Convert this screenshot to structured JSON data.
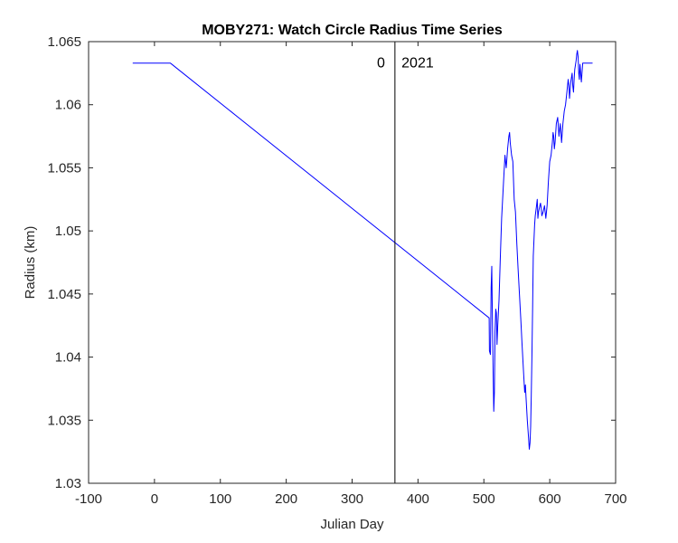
{
  "chart_data": {
    "type": "line",
    "title": "MOBY271: Watch Circle Radius Time Series",
    "xlabel": "Julian Day",
    "ylabel": "Radius (km)",
    "xlim": [
      -100,
      700
    ],
    "ylim": [
      1.03,
      1.065
    ],
    "xticks": [
      -100,
      0,
      100,
      200,
      300,
      400,
      500,
      600,
      700
    ],
    "yticks": [
      1.03,
      1.035,
      1.04,
      1.045,
      1.05,
      1.055,
      1.06,
      1.065
    ],
    "grid": false,
    "box": true,
    "series": [
      {
        "color": "#0000ff",
        "points": [
          [
            -33,
            1.0633
          ],
          [
            24,
            1.0633
          ],
          [
            508,
            1.0431
          ],
          [
            508.5,
            1.0405
          ],
          [
            510,
            1.0402
          ],
          [
            511,
            1.0455
          ],
          [
            512,
            1.0472
          ],
          [
            513,
            1.043
          ],
          [
            514,
            1.0388
          ],
          [
            515,
            1.0357
          ],
          [
            516,
            1.0372
          ],
          [
            517,
            1.042
          ],
          [
            518,
            1.0438
          ],
          [
            519,
            1.0435
          ],
          [
            520,
            1.041
          ],
          [
            521,
            1.0425
          ],
          [
            523,
            1.0445
          ],
          [
            525,
            1.048
          ],
          [
            527,
            1.051
          ],
          [
            530,
            1.054
          ],
          [
            532,
            1.056
          ],
          [
            534,
            1.055
          ],
          [
            536,
            1.0565
          ],
          [
            538,
            1.0575
          ],
          [
            539,
            1.0578
          ],
          [
            540,
            1.057
          ],
          [
            542,
            1.056
          ],
          [
            544,
            1.0555
          ],
          [
            546,
            1.0525
          ],
          [
            548,
            1.0515
          ],
          [
            550,
            1.049
          ],
          [
            552,
            1.047
          ],
          [
            554,
            1.045
          ],
          [
            556,
            1.043
          ],
          [
            558,
            1.041
          ],
          [
            560,
            1.039
          ],
          [
            562,
            1.0372
          ],
          [
            563,
            1.0378
          ],
          [
            564,
            1.0368
          ],
          [
            566,
            1.035
          ],
          [
            568,
            1.0335
          ],
          [
            569,
            1.0327
          ],
          [
            570,
            1.0332
          ],
          [
            571,
            1.0345
          ],
          [
            572,
            1.037
          ],
          [
            573,
            1.04
          ],
          [
            574,
            1.044
          ],
          [
            575,
            1.048
          ],
          [
            577,
            1.0505
          ],
          [
            578,
            1.0512
          ],
          [
            580,
            1.052
          ],
          [
            581,
            1.0525
          ],
          [
            582,
            1.051
          ],
          [
            583,
            1.0515
          ],
          [
            585,
            1.052
          ],
          [
            586,
            1.0522
          ],
          [
            587,
            1.0518
          ],
          [
            588,
            1.0512
          ],
          [
            590,
            1.0515
          ],
          [
            592,
            1.052
          ],
          [
            594,
            1.051
          ],
          [
            596,
            1.052
          ],
          [
            598,
            1.054
          ],
          [
            600,
            1.0555
          ],
          [
            602,
            1.056
          ],
          [
            604,
            1.057
          ],
          [
            605,
            1.0578
          ],
          [
            606,
            1.0575
          ],
          [
            607,
            1.0565
          ],
          [
            608,
            1.057
          ],
          [
            610,
            1.0585
          ],
          [
            612,
            1.059
          ],
          [
            613,
            1.0583
          ],
          [
            614,
            1.0575
          ],
          [
            616,
            1.0585
          ],
          [
            617,
            1.0578
          ],
          [
            618,
            1.057
          ],
          [
            620,
            1.0585
          ],
          [
            622,
            1.0595
          ],
          [
            624,
            1.06
          ],
          [
            626,
            1.061
          ],
          [
            628,
            1.062
          ],
          [
            629,
            1.0615
          ],
          [
            630,
            1.0605
          ],
          [
            631,
            1.0612
          ],
          [
            632,
            1.0618
          ],
          [
            634,
            1.0625
          ],
          [
            635,
            1.0615
          ],
          [
            636,
            1.061
          ],
          [
            637,
            1.062
          ],
          [
            638,
            1.0628
          ],
          [
            640,
            1.0635
          ],
          [
            641,
            1.064
          ],
          [
            642,
            1.0643
          ],
          [
            643,
            1.0638
          ],
          [
            644,
            1.0625
          ],
          [
            645,
            1.062
          ],
          [
            646,
            1.0632
          ],
          [
            647,
            1.0625
          ],
          [
            648,
            1.0618
          ],
          [
            649,
            1.0625
          ],
          [
            650,
            1.0633
          ],
          [
            665,
            1.0633
          ]
        ]
      }
    ],
    "vline": {
      "x": 365,
      "color": "#000000"
    },
    "annotations": [
      {
        "text": "0",
        "x": 350,
        "y": 1.0633,
        "anchor": "end"
      },
      {
        "text": "2021",
        "x": 375,
        "y": 1.0633,
        "anchor": "start"
      }
    ]
  }
}
